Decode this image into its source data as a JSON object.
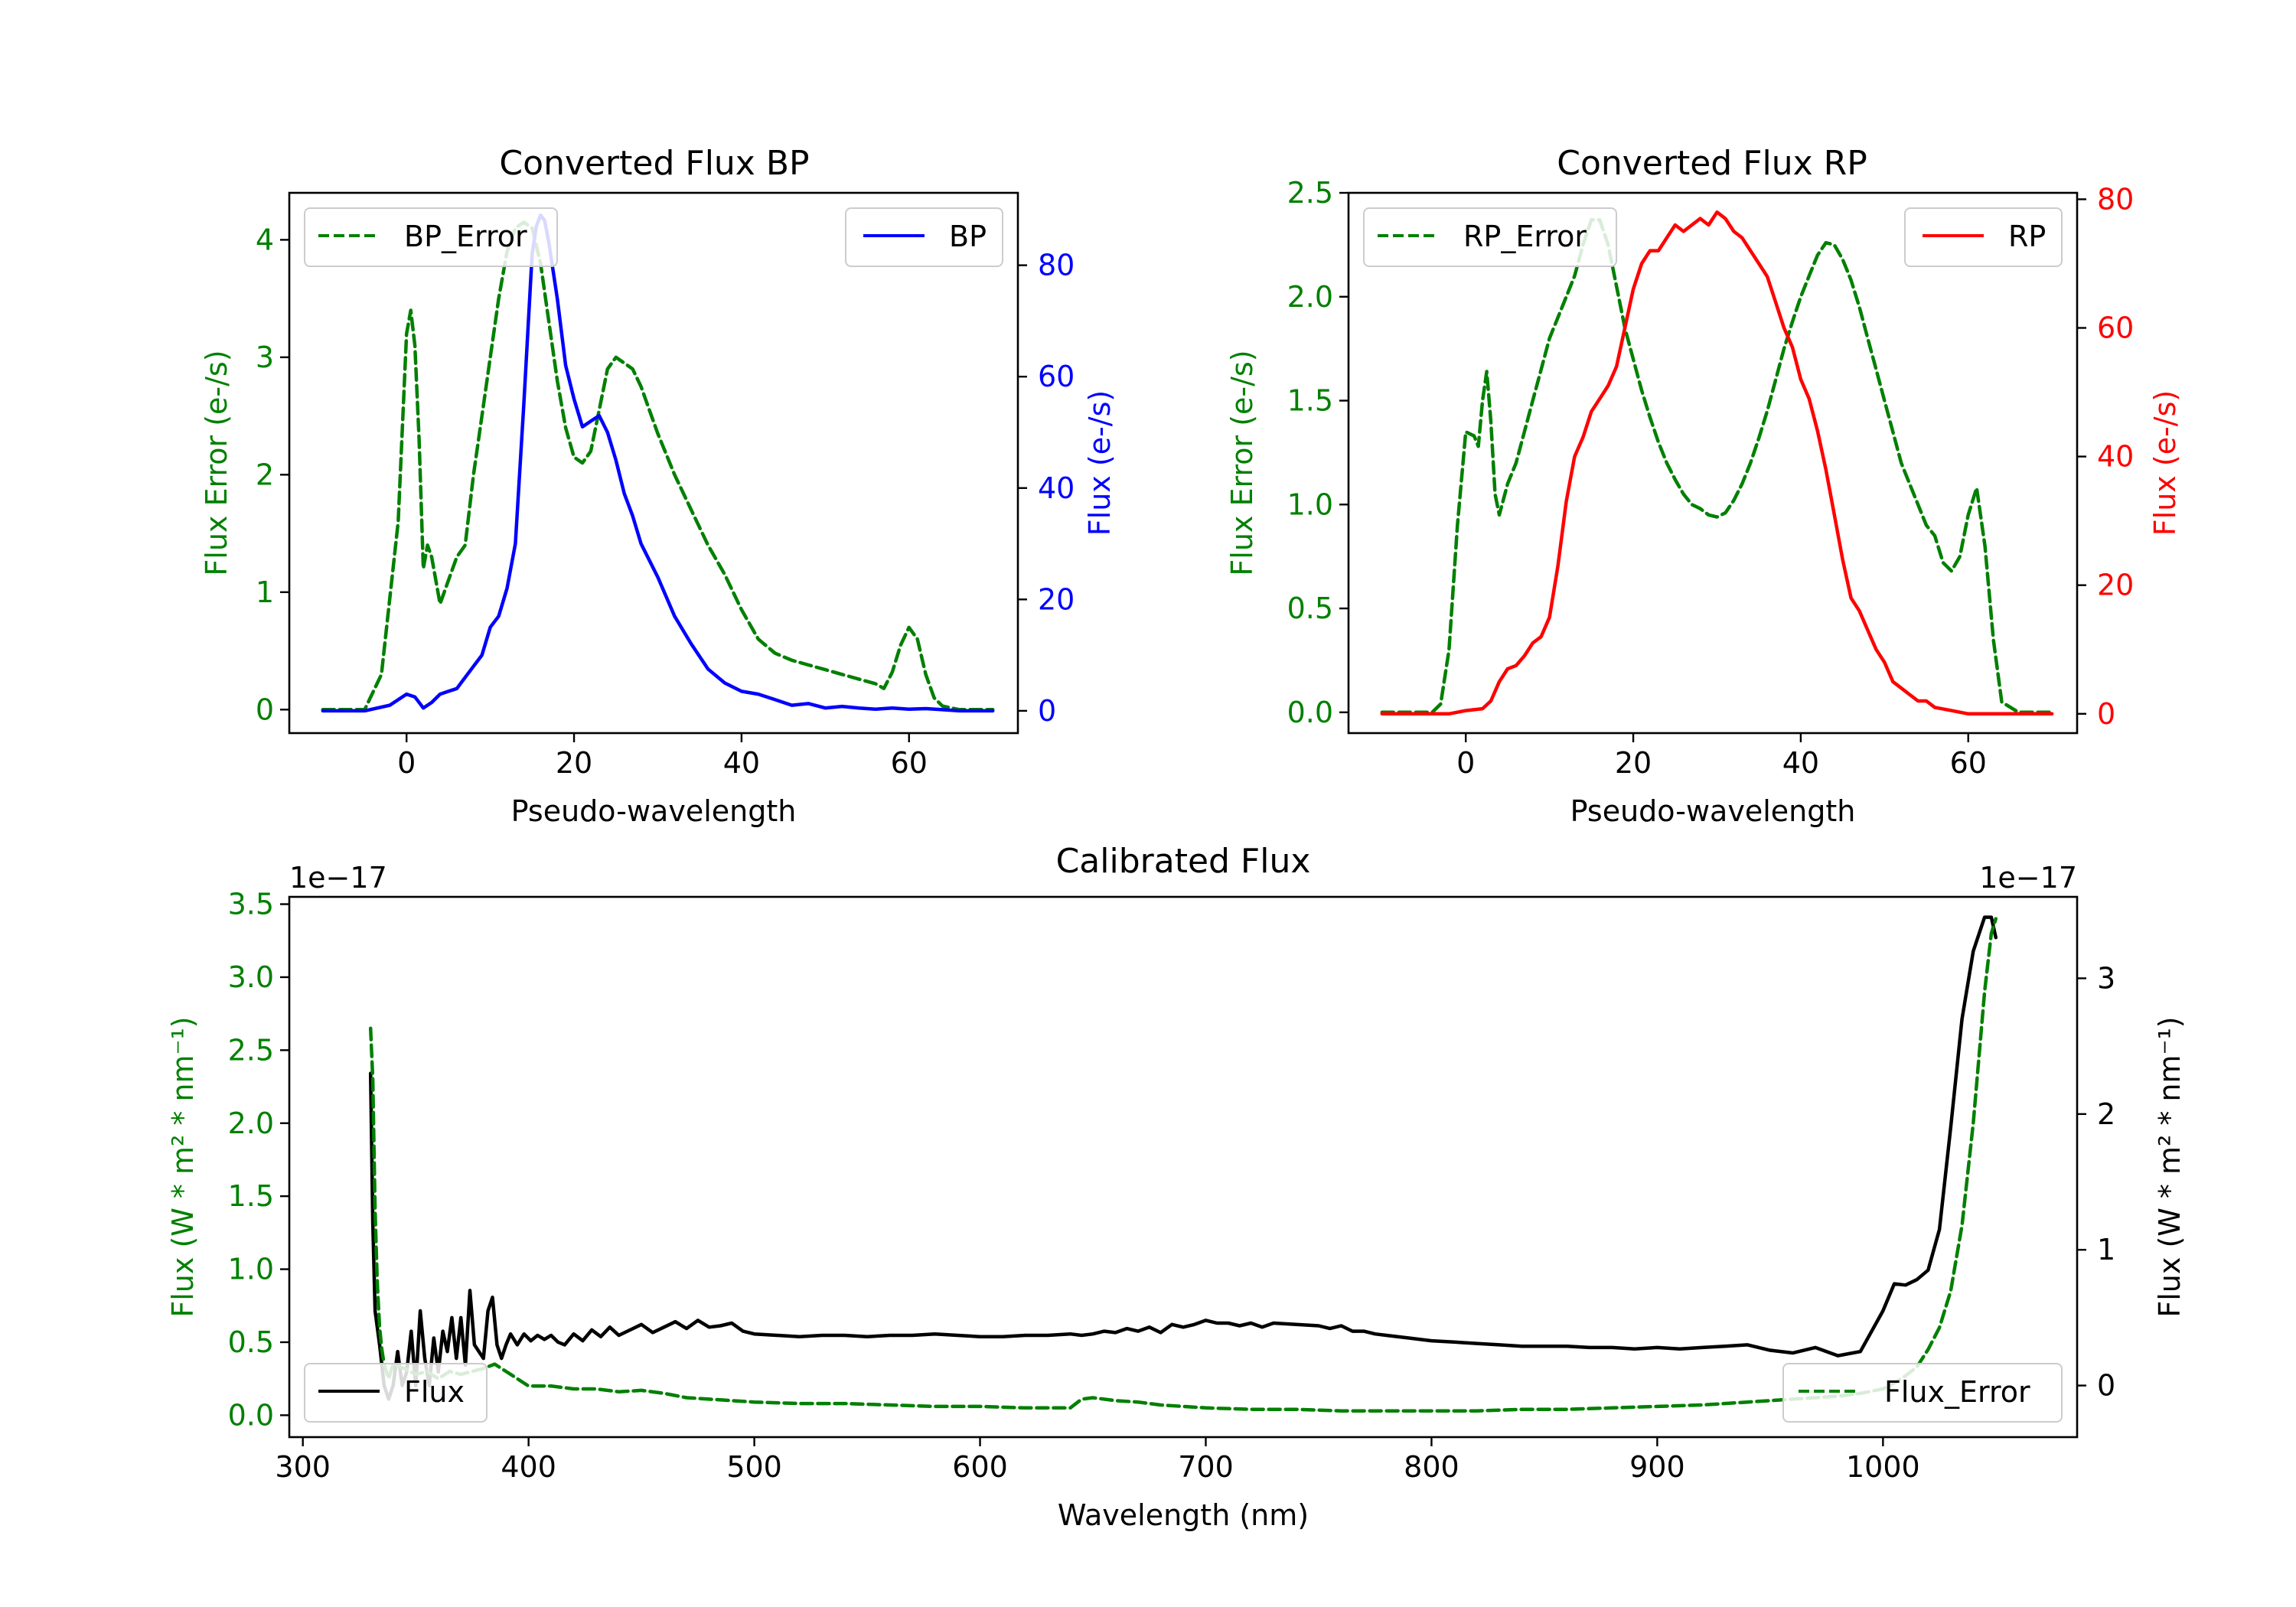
{
  "chart_data": [
    {
      "type": "line",
      "title": "Converted Flux BP",
      "xlabel": "Pseudo-wavelength",
      "ylabel_left": "Flux Error (e-/s)",
      "ylabel_right": "Flux (e-/s)",
      "xlim": [
        -14,
        73
      ],
      "ylim_left": [
        -0.2,
        4.4
      ],
      "ylim_right": [
        -4,
        93
      ],
      "x_ticks": [
        0,
        20,
        40,
        60
      ],
      "y_ticks_left": [
        0,
        1,
        2,
        3,
        4
      ],
      "y_ticks_right": [
        0,
        20,
        40,
        60,
        80
      ],
      "series": [
        {
          "name": "BP_Error",
          "axis": "left",
          "color": "#008000",
          "style": "dashed",
          "x": [
            -10,
            -5,
            -3,
            -1,
            0,
            0.5,
            1,
            1.5,
            2,
            2.5,
            3,
            4,
            5,
            6,
            7,
            8,
            9,
            10,
            11,
            12,
            13,
            14,
            15,
            16,
            17,
            18,
            19,
            20,
            21,
            22,
            23,
            24,
            25,
            26,
            27,
            28,
            29,
            30,
            32,
            34,
            36,
            38,
            40,
            42,
            44,
            46,
            48,
            50,
            52,
            54,
            56,
            57,
            58,
            59,
            60,
            61,
            62,
            63,
            64,
            66,
            70
          ],
          "y": [
            0,
            0,
            0.3,
            1.6,
            3.2,
            3.4,
            3.1,
            2.3,
            1.2,
            1.4,
            1.3,
            0.9,
            1.1,
            1.3,
            1.4,
            2.0,
            2.5,
            3.0,
            3.5,
            3.9,
            4.1,
            4.15,
            4.1,
            3.8,
            3.3,
            2.8,
            2.4,
            2.15,
            2.1,
            2.2,
            2.55,
            2.9,
            3.0,
            2.95,
            2.9,
            2.75,
            2.55,
            2.35,
            2.0,
            1.7,
            1.4,
            1.15,
            0.85,
            0.6,
            0.48,
            0.42,
            0.38,
            0.34,
            0.3,
            0.26,
            0.22,
            0.18,
            0.32,
            0.55,
            0.7,
            0.6,
            0.3,
            0.1,
            0.03,
            0,
            0
          ]
        },
        {
          "name": "BP",
          "axis": "right",
          "color": "#0000ff",
          "style": "solid",
          "x": [
            -10,
            -5,
            -2,
            0,
            1,
            2,
            3,
            4,
            5,
            6,
            7,
            8,
            9,
            10,
            11,
            12,
            13,
            14,
            15,
            15.5,
            16,
            16.5,
            17,
            18,
            19,
            20,
            21,
            22,
            23,
            24,
            25,
            26,
            27,
            28,
            30,
            32,
            34,
            36,
            38,
            40,
            42,
            44,
            46,
            48,
            50,
            52,
            54,
            56,
            58,
            60,
            62,
            64,
            66,
            70
          ],
          "y": [
            0,
            0,
            1,
            3,
            2.5,
            0.5,
            1.5,
            3,
            3.5,
            4,
            6,
            8,
            10,
            15,
            17,
            22,
            30,
            55,
            82,
            87,
            89,
            88,
            84,
            74,
            62,
            56,
            51,
            52,
            53,
            50,
            45,
            39,
            35,
            30,
            24,
            17,
            12,
            7.5,
            5,
            3.5,
            3,
            2,
            1,
            1.3,
            0.5,
            0.8,
            0.5,
            0.3,
            0.5,
            0.3,
            0.4,
            0.2,
            0,
            0
          ]
        }
      ],
      "legend": [
        {
          "label": "BP_Error",
          "position": "upper-left"
        },
        {
          "label": "BP",
          "position": "upper-right"
        }
      ]
    },
    {
      "type": "line",
      "title": "Converted Flux RP",
      "xlabel": "Pseudo-wavelength",
      "ylabel_left": "Flux Error (e-/s)",
      "ylabel_right": "Flux (e-/s)",
      "xlim": [
        -14,
        73
      ],
      "ylim_left": [
        -0.1,
        2.5
      ],
      "ylim_right": [
        -3,
        81
      ],
      "x_ticks": [
        0,
        20,
        40,
        60
      ],
      "y_ticks_left": [
        0.0,
        0.5,
        1.0,
        1.5,
        2.0,
        2.5
      ],
      "y_ticks_right": [
        0,
        20,
        40,
        60,
        80
      ],
      "series": [
        {
          "name": "RP_Error",
          "axis": "left",
          "color": "#008000",
          "style": "dashed",
          "x": [
            -10,
            -4,
            -3,
            -2,
            -1,
            0,
            1,
            1.5,
            2,
            2.5,
            3,
            3.5,
            4,
            5,
            6,
            7,
            8,
            9,
            10,
            11,
            12,
            13,
            14,
            15,
            16,
            17,
            18,
            19,
            20,
            21,
            22,
            23,
            24,
            25,
            26,
            27,
            28,
            29,
            30,
            31,
            32,
            33,
            34,
            35,
            36,
            37,
            38,
            39,
            40,
            41,
            42,
            43,
            44,
            45,
            46,
            47,
            48,
            49,
            50,
            51,
            52,
            53,
            54,
            55,
            56,
            57,
            58,
            59,
            60,
            61,
            62,
            63,
            64,
            66,
            70
          ],
          "y": [
            0,
            0,
            0.04,
            0.3,
            0.9,
            1.35,
            1.33,
            1.28,
            1.5,
            1.64,
            1.4,
            1.05,
            0.95,
            1.1,
            1.2,
            1.35,
            1.5,
            1.65,
            1.8,
            1.9,
            2.0,
            2.1,
            2.25,
            2.37,
            2.37,
            2.25,
            2.05,
            1.85,
            1.7,
            1.55,
            1.42,
            1.3,
            1.2,
            1.12,
            1.05,
            1.0,
            0.98,
            0.95,
            0.94,
            0.96,
            1.02,
            1.1,
            1.2,
            1.32,
            1.45,
            1.6,
            1.75,
            1.88,
            2.0,
            2.1,
            2.2,
            2.26,
            2.25,
            2.18,
            2.08,
            1.95,
            1.8,
            1.65,
            1.5,
            1.35,
            1.2,
            1.1,
            1.0,
            0.9,
            0.85,
            0.72,
            0.68,
            0.75,
            0.95,
            1.08,
            0.8,
            0.35,
            0.05,
            0,
            0
          ]
        },
        {
          "name": "RP",
          "axis": "right",
          "color": "#ff0000",
          "style": "solid",
          "x": [
            -10,
            -2,
            0,
            2,
            3,
            4,
            5,
            6,
            7,
            8,
            9,
            10,
            11,
            12,
            13,
            14,
            15,
            16,
            17,
            18,
            19,
            20,
            21,
            22,
            23,
            24,
            25,
            26,
            27,
            28,
            29,
            30,
            31,
            32,
            33,
            34,
            35,
            36,
            37,
            38,
            39,
            40,
            41,
            42,
            43,
            44,
            45,
            46,
            47,
            48,
            49,
            50,
            51,
            52,
            53,
            54,
            55,
            56,
            58,
            60,
            62,
            64,
            66,
            70
          ],
          "y": [
            0,
            0,
            0.5,
            0.8,
            2,
            5,
            7,
            7.5,
            9,
            11,
            12,
            15,
            23,
            33,
            40,
            43,
            47,
            49,
            51,
            54,
            60,
            66,
            70,
            72,
            72,
            74,
            76,
            75,
            76,
            77,
            76,
            78,
            77,
            75,
            74,
            72,
            70,
            68,
            64,
            60,
            57,
            52,
            49,
            44,
            38,
            31,
            24,
            18,
            16,
            13,
            10,
            8,
            5,
            4,
            3,
            2,
            2,
            1,
            0.5,
            0,
            0,
            0,
            0,
            0
          ]
        }
      ],
      "legend": [
        {
          "label": "RP_Error",
          "position": "upper-left"
        },
        {
          "label": "RP",
          "position": "upper-right"
        }
      ]
    },
    {
      "type": "line",
      "title": "Calibrated Flux",
      "xlabel": "Wavelength (nm)",
      "ylabel_left": "Flux (W * m² * nm⁻¹)",
      "ylabel_right": "Flux (W * m² * nm⁻¹)",
      "offset_left": "1e−17",
      "offset_right": "1e−17",
      "xlim": [
        294,
        1086
      ],
      "ylim_left": [
        -0.15,
        3.55
      ],
      "ylim_right": [
        -0.38,
        3.6
      ],
      "x_ticks": [
        300,
        400,
        500,
        600,
        700,
        800,
        900,
        1000
      ],
      "y_ticks_left": [
        0.0,
        0.5,
        1.0,
        1.5,
        2.0,
        2.5,
        3.0,
        3.5
      ],
      "y_ticks_right": [
        0,
        1,
        2,
        3
      ],
      "series": [
        {
          "name": "Flux",
          "axis": "right",
          "color": "#000000",
          "style": "solid",
          "x": [
            330,
            331,
            332,
            334,
            336,
            338,
            340,
            342,
            344,
            346,
            348,
            350,
            352,
            354,
            356,
            358,
            360,
            362,
            364,
            366,
            368,
            370,
            372,
            374,
            376,
            378,
            380,
            382,
            384,
            386,
            388,
            390,
            392,
            395,
            398,
            401,
            404,
            407,
            410,
            413,
            416,
            420,
            424,
            428,
            432,
            436,
            440,
            445,
            450,
            455,
            460,
            465,
            470,
            475,
            480,
            485,
            490,
            495,
            500,
            510,
            520,
            530,
            540,
            550,
            560,
            570,
            580,
            590,
            600,
            610,
            620,
            630,
            640,
            645,
            650,
            655,
            660,
            665,
            670,
            675,
            680,
            685,
            690,
            695,
            700,
            705,
            710,
            715,
            720,
            725,
            730,
            740,
            750,
            755,
            760,
            765,
            770,
            775,
            780,
            790,
            800,
            810,
            820,
            830,
            840,
            850,
            860,
            870,
            880,
            890,
            900,
            910,
            920,
            930,
            940,
            950,
            960,
            970,
            980,
            990,
            1000,
            1005,
            1010,
            1015,
            1020,
            1025,
            1030,
            1035,
            1040,
            1045,
            1048,
            1050
          ],
          "y": [
            2.3,
            1.2,
            0.55,
            0.3,
            0.0,
            -0.1,
            0.0,
            0.25,
            0.0,
            0.1,
            0.4,
            0.0,
            0.55,
            0.2,
            0.0,
            0.35,
            0.1,
            0.4,
            0.25,
            0.5,
            0.2,
            0.5,
            0.15,
            0.7,
            0.3,
            0.25,
            0.2,
            0.55,
            0.65,
            0.3,
            0.2,
            0.3,
            0.38,
            0.3,
            0.38,
            0.33,
            0.37,
            0.34,
            0.37,
            0.32,
            0.3,
            0.38,
            0.33,
            0.41,
            0.36,
            0.43,
            0.37,
            0.41,
            0.45,
            0.39,
            0.43,
            0.47,
            0.42,
            0.48,
            0.43,
            0.44,
            0.46,
            0.4,
            0.38,
            0.37,
            0.36,
            0.37,
            0.37,
            0.36,
            0.37,
            0.37,
            0.38,
            0.37,
            0.36,
            0.36,
            0.37,
            0.37,
            0.38,
            0.37,
            0.38,
            0.4,
            0.39,
            0.42,
            0.4,
            0.43,
            0.39,
            0.45,
            0.43,
            0.45,
            0.48,
            0.46,
            0.46,
            0.44,
            0.46,
            0.43,
            0.46,
            0.45,
            0.44,
            0.42,
            0.44,
            0.4,
            0.4,
            0.38,
            0.37,
            0.35,
            0.33,
            0.32,
            0.31,
            0.3,
            0.29,
            0.29,
            0.29,
            0.28,
            0.28,
            0.27,
            0.28,
            0.27,
            0.28,
            0.29,
            0.3,
            0.26,
            0.24,
            0.28,
            0.22,
            0.25,
            0.55,
            0.75,
            0.74,
            0.78,
            0.85,
            1.15,
            1.9,
            2.7,
            3.2,
            3.45,
            3.45,
            3.3
          ]
        },
        {
          "name": "Flux_Error",
          "axis": "left",
          "color": "#008000",
          "style": "dashed",
          "x": [
            330,
            331,
            332,
            333,
            334,
            335,
            336,
            337,
            338,
            339,
            340,
            345,
            350,
            355,
            360,
            365,
            370,
            375,
            380,
            385,
            390,
            395,
            400,
            410,
            420,
            430,
            440,
            450,
            460,
            470,
            480,
            490,
            500,
            520,
            540,
            560,
            580,
            600,
            620,
            640,
            645,
            650,
            660,
            670,
            680,
            700,
            720,
            740,
            760,
            780,
            800,
            820,
            840,
            860,
            880,
            900,
            920,
            940,
            960,
            980,
            990,
            1000,
            1005,
            1010,
            1015,
            1020,
            1025,
            1030,
            1035,
            1040,
            1045,
            1048,
            1050
          ],
          "y": [
            2.65,
            2.3,
            1.4,
            0.9,
            0.6,
            0.45,
            0.35,
            0.3,
            0.25,
            0.3,
            0.35,
            0.32,
            0.28,
            0.3,
            0.25,
            0.3,
            0.28,
            0.3,
            0.32,
            0.35,
            0.3,
            0.25,
            0.2,
            0.2,
            0.18,
            0.18,
            0.16,
            0.17,
            0.15,
            0.12,
            0.11,
            0.1,
            0.09,
            0.08,
            0.08,
            0.07,
            0.06,
            0.06,
            0.05,
            0.05,
            0.11,
            0.12,
            0.1,
            0.09,
            0.07,
            0.05,
            0.04,
            0.04,
            0.03,
            0.03,
            0.03,
            0.03,
            0.04,
            0.04,
            0.05,
            0.06,
            0.07,
            0.09,
            0.11,
            0.13,
            0.15,
            0.18,
            0.22,
            0.27,
            0.33,
            0.45,
            0.6,
            0.85,
            1.3,
            2.0,
            2.9,
            3.3,
            3.4
          ]
        }
      ],
      "legend": [
        {
          "label": "Flux",
          "position": "lower-left"
        },
        {
          "label": "Flux_Error",
          "position": "lower-right"
        }
      ]
    }
  ]
}
